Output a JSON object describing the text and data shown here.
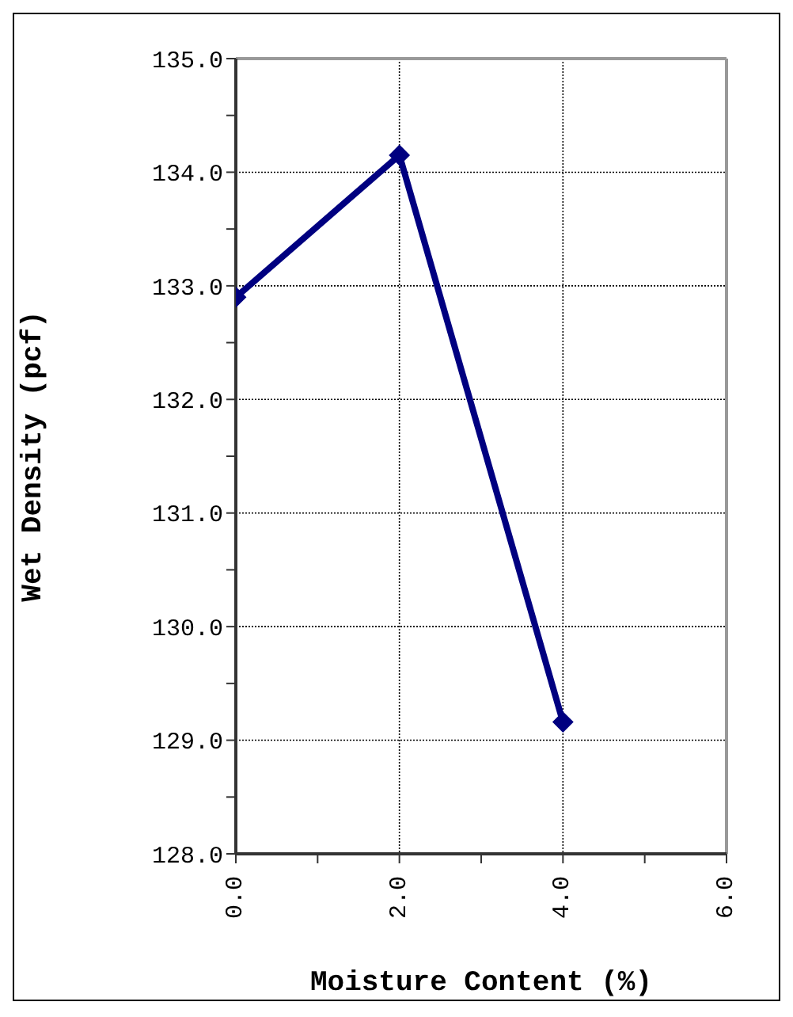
{
  "chart_data": {
    "type": "line",
    "xlabel": "Moisture Content (%)",
    "ylabel": "Wet Density (pcf)",
    "x": [
      0,
      2,
      4
    ],
    "series": [
      {
        "color": "#000080",
        "values": [
          132.9,
          134.15,
          129.16
        ]
      }
    ],
    "xlim": [
      0,
      6
    ],
    "xticks": [
      {
        "value": 0,
        "label": "0.0"
      },
      {
        "value": 1,
        "label": null
      },
      {
        "value": 2,
        "label": "2.0"
      },
      {
        "value": 3,
        "label": null
      },
      {
        "value": 4,
        "label": "4.0"
      },
      {
        "value": 5,
        "label": null
      },
      {
        "value": 6,
        "label": "6.0"
      }
    ],
    "ylim": [
      128,
      135
    ],
    "yticks": [
      {
        "value": 128,
        "label": "128.0"
      },
      {
        "value": 128.5,
        "label": null
      },
      {
        "value": 129,
        "label": "129.0"
      },
      {
        "value": 129.5,
        "label": null
      },
      {
        "value": 130,
        "label": "130.0"
      },
      {
        "value": 130.5,
        "label": null
      },
      {
        "value": 131,
        "label": "131.0"
      },
      {
        "value": 131.5,
        "label": null
      },
      {
        "value": 132,
        "label": "132.0"
      },
      {
        "value": 132.5,
        "label": null
      },
      {
        "value": 133,
        "label": "133.0"
      },
      {
        "value": 133.5,
        "label": null
      },
      {
        "value": 134,
        "label": "134.0"
      },
      {
        "value": 134.5,
        "label": null
      },
      {
        "value": 135,
        "label": "135.0"
      }
    ],
    "grid": true,
    "marker": "diamond",
    "line_style": "solid",
    "legend": false
  }
}
